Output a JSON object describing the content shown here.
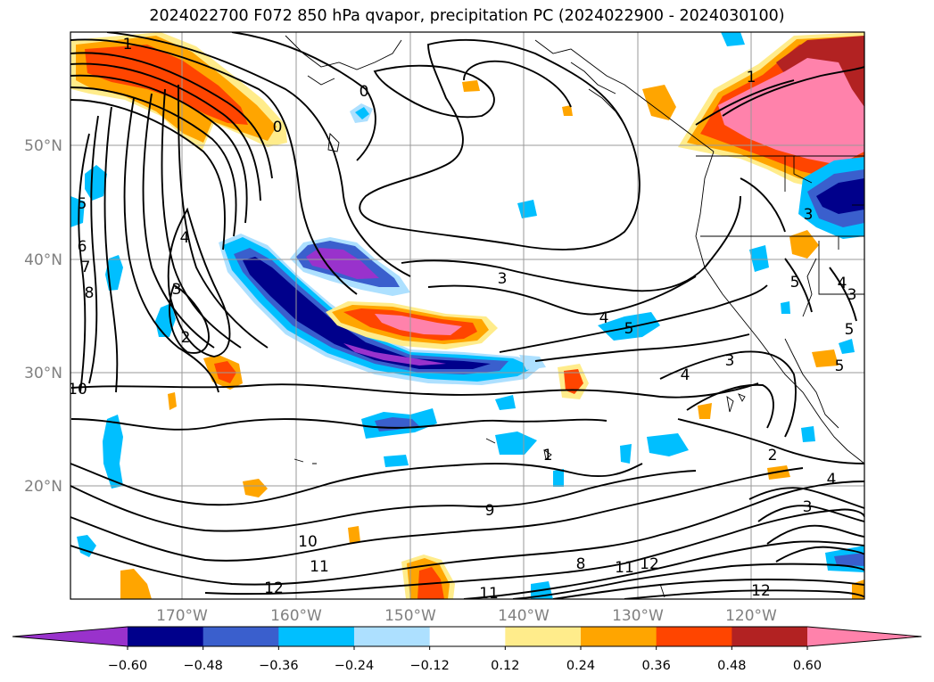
{
  "title": "2024022700 F072 850 hPa qvapor, precipitation PC (2024022900 - 2024030100)",
  "map": {
    "lat_labels": [
      "50°N",
      "40°N",
      "30°N",
      "20°N"
    ],
    "lon_labels": [
      "170°W",
      "160°W",
      "150°W",
      "140°W",
      "130°W",
      "120°W"
    ],
    "contour_labels": [
      {
        "text": "1"
      },
      {
        "text": "0"
      },
      {
        "text": "0"
      },
      {
        "text": "1"
      },
      {
        "text": "5"
      },
      {
        "text": "6"
      },
      {
        "text": "7"
      },
      {
        "text": "8"
      },
      {
        "text": "4"
      },
      {
        "text": "3"
      },
      {
        "text": "2"
      },
      {
        "text": "10"
      },
      {
        "text": "3"
      },
      {
        "text": "4"
      },
      {
        "text": "5"
      },
      {
        "text": "1"
      },
      {
        "text": "9"
      },
      {
        "text": "10"
      },
      {
        "text": "11"
      },
      {
        "text": "12"
      },
      {
        "text": "8"
      },
      {
        "text": "11"
      },
      {
        "text": "12"
      },
      {
        "text": "11"
      },
      {
        "text": "3"
      },
      {
        "text": "4"
      },
      {
        "text": "2"
      },
      {
        "text": "3"
      },
      {
        "text": "4"
      },
      {
        "text": "12"
      },
      {
        "text": "3"
      },
      {
        "text": "5"
      },
      {
        "text": "5"
      },
      {
        "text": "4"
      },
      {
        "text": "3"
      },
      {
        "text": "5"
      }
    ]
  },
  "colorbar": {
    "ticks": [
      "−0.60",
      "−0.48",
      "−0.36",
      "−0.24",
      "−0.12",
      "0.12",
      "0.24",
      "0.36",
      "0.48",
      "0.60"
    ],
    "colors": [
      "#9932CC",
      "#00008B",
      "#3A5FCD",
      "#00BFFF",
      "#ADE0FF",
      "#FFFFFF",
      "#FFEC8B",
      "#FFA500",
      "#FF4500",
      "#B22222",
      "#FF82AB"
    ]
  }
}
